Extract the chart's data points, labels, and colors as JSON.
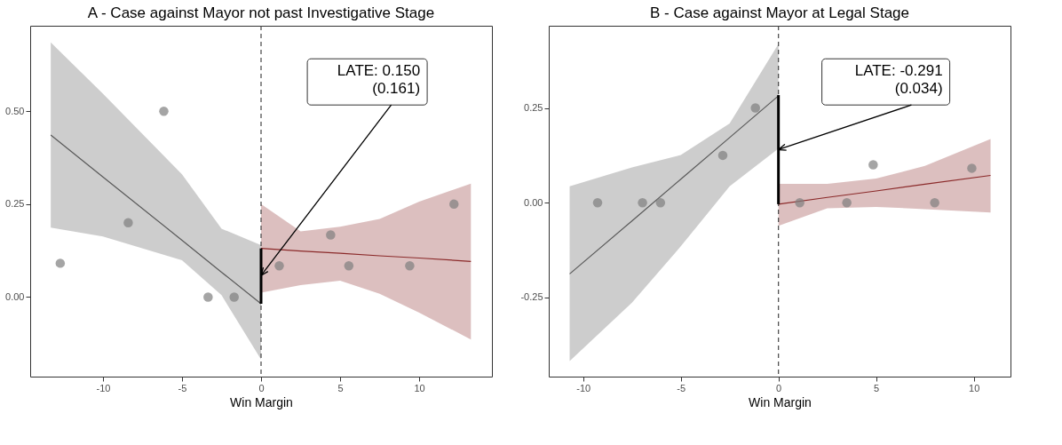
{
  "chart_data": [
    {
      "type": "scatter",
      "title": "A - Case against Mayor not past Investigative Stage",
      "xlabel": "Win Margin",
      "xlim": [
        -14.6,
        14.6
      ],
      "ylim": [
        -0.214,
        0.73
      ],
      "xticks": [
        -10,
        -5,
        0,
        5,
        10
      ],
      "yticks": [
        {
          "value": 0,
          "label": "0.00"
        },
        {
          "value": 0.25,
          "label": "0.25"
        },
        {
          "value": 0.5,
          "label": "0.50"
        }
      ],
      "grid": false,
      "ref_lines": [
        {
          "axis": "x",
          "value": 0,
          "color": "#444444",
          "line_style": "dashed"
        }
      ],
      "series": [
        {
          "type": "line",
          "color": "#595959",
          "x": [
            -13.3,
            -10,
            -5,
            -2.5,
            0
          ],
          "values": [
            0.436,
            0.323,
            0.153,
            0.067,
            -0.018
          ],
          "lower": [
            0.187,
            0.163,
            0.099,
            0.005,
            -0.168
          ],
          "upper": [
            0.685,
            0.547,
            0.33,
            0.184,
            0.14
          ]
        },
        {
          "type": "line",
          "color": "#8b2a2a",
          "x": [
            0,
            2.5,
            5,
            7.5,
            10,
            13.27
          ],
          "values": [
            0.131,
            0.124,
            0.118,
            0.111,
            0.105,
            0.096
          ],
          "lower": [
            0.012,
            0.032,
            0.044,
            0.009,
            -0.042,
            -0.114
          ],
          "upper": [
            0.25,
            0.177,
            0.189,
            0.21,
            0.257,
            0.305
          ]
        },
        {
          "type": "line",
          "color": "#000000",
          "x": [
            0,
            0
          ],
          "values": [
            -0.018,
            0.131
          ]
        },
        {
          "marker": "circle",
          "color": "#7f7f7f",
          "x": [
            -12.7,
            -8.4,
            -6.15,
            -3.35,
            -1.7,
            1.15,
            4.4,
            5.55,
            9.4,
            12.2
          ],
          "values": [
            0.091,
            0.2,
            0.5,
            0,
            0,
            0.084,
            0.167,
            0.084,
            0.084,
            0.25
          ]
        }
      ],
      "annotations": [
        {
          "text": "LATE:   0.150\n(0.161)",
          "x": 0,
          "y": 0.058
        }
      ]
    },
    {
      "type": "scatter",
      "title": "B - Case against Mayor at Legal Stage",
      "xlabel": "Win Margin",
      "xlim": [
        -11.76,
        11.88
      ],
      "ylim": [
        -0.459,
        0.467
      ],
      "xticks": [
        -10,
        -5,
        0,
        5,
        10
      ],
      "yticks": [
        {
          "value": -0.25,
          "label": "-0.25"
        },
        {
          "value": 0,
          "label": "0.00"
        },
        {
          "value": 0.25,
          "label": "0.25"
        }
      ],
      "grid": false,
      "ref_lines": [
        {
          "axis": "x",
          "value": 0,
          "color": "#444444",
          "line_style": "dashed"
        }
      ],
      "series": [
        {
          "type": "line",
          "color": "#595959",
          "x": [
            -10.69,
            -7.5,
            -5,
            -2.5,
            0
          ],
          "values": [
            -0.188,
            -0.048,
            0.062,
            0.172,
            0.282
          ],
          "lower": [
            -0.418,
            -0.264,
            -0.115,
            0.043,
            0.143
          ],
          "upper": [
            0.043,
            0.093,
            0.126,
            0.209,
            0.419
          ]
        },
        {
          "type": "line",
          "color": "#8b2a2a",
          "x": [
            0,
            2.5,
            5,
            7.5,
            10.86
          ],
          "values": [
            -0.004,
            0.014,
            0.031,
            0.049,
            0.072
          ],
          "lower": [
            -0.061,
            -0.015,
            -0.011,
            -0.017,
            -0.026
          ],
          "upper": [
            0.05,
            0.05,
            0.064,
            0.097,
            0.168
          ]
        },
        {
          "type": "line",
          "color": "#000000",
          "x": [
            0,
            0
          ],
          "values": [
            -0.004,
            0.284
          ]
        },
        {
          "marker": "circle",
          "color": "#7f7f7f",
          "x": [
            -9.26,
            -6.96,
            -6.04,
            -2.85,
            -1.18,
            1.09,
            3.5,
            4.85,
            8.0,
            9.9
          ],
          "values": [
            0,
            0,
            0,
            0.125,
            0.25,
            0,
            0,
            0.1,
            0,
            0.091
          ]
        }
      ],
      "annotations": [
        {
          "text": "LATE:   -0.291\n(0.034)",
          "x": 0,
          "y": 0.14
        }
      ]
    }
  ]
}
